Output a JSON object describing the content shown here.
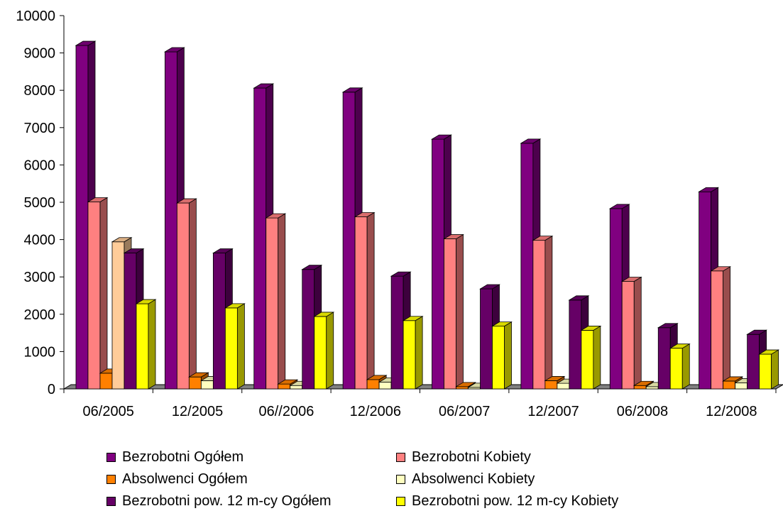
{
  "chart_data": {
    "type": "bar",
    "categories": [
      "06/2005",
      "12/2005",
      "06//2006",
      "12/2006",
      "06/2007",
      "12/2007",
      "06/2008",
      "12/2008"
    ],
    "series": [
      {
        "name": "Bezrobotni Ogółem",
        "color": "#800080",
        "values": [
          9200,
          9030,
          8060,
          7950,
          6690,
          6580,
          4830,
          5280
        ]
      },
      {
        "name": "Bezrobotni Kobiety",
        "color": "#FF8080",
        "values": [
          5010,
          4980,
          4580,
          4610,
          4020,
          3980,
          2880,
          3160
        ]
      },
      {
        "name": "Absolwenci Ogółem",
        "color": "#FF8000",
        "values": [
          420,
          320,
          130,
          250,
          60,
          220,
          90,
          210
        ]
      },
      {
        "name": "Absolwenci Kobiety",
        "color": "#FFFFC0",
        "values": [
          290,
          220,
          90,
          180,
          40,
          150,
          60,
          160
        ],
        "highlight": {
          "index": 0,
          "value": 3940,
          "color": "#FFCC99"
        }
      },
      {
        "name": "Bezrobotni  pow. 12 m-cy Ogółem",
        "color": "#660066",
        "values": [
          3640,
          0,
          3200,
          3020,
          2680,
          2380,
          1640,
          1460
        ]
      },
      {
        "name": "Bezrobotni  pow. 12 m-cy Kobiety",
        "color": "#FFFF00",
        "values": [
          2280,
          2170,
          1940,
          1830,
          1680,
          1570,
          1090,
          930
        ]
      }
    ],
    "extra_bar": {
      "category_index": 1,
      "series_index": 4,
      "value": 3640
    },
    "ylim": [
      0,
      10000
    ],
    "yticks": [
      "0",
      "1000",
      "2000",
      "3000",
      "4000",
      "5000",
      "6000",
      "7000",
      "8000",
      "9000",
      "10000"
    ],
    "grid": false,
    "legend_position": "bottom"
  }
}
